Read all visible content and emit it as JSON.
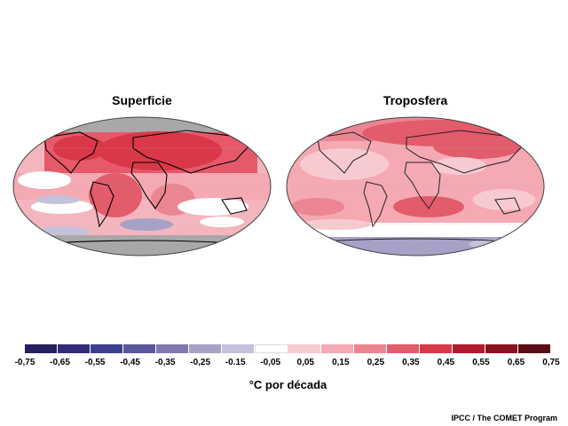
{
  "maps": {
    "surface": {
      "title": "Superficie"
    },
    "troposphere": {
      "title": "Troposfera"
    }
  },
  "legend": {
    "unit": "°C por década",
    "ticks": [
      "-0,75",
      "-0,65",
      "-0,55",
      "-0,45",
      "-0,35",
      "-0,25",
      "-0.15",
      "-0,05",
      "0,05",
      "0,15",
      "0,25",
      "0,35",
      "0,45",
      "0,55",
      "0,65",
      "0,75"
    ],
    "colors": [
      "#26215e",
      "#322c79",
      "#3d3f8e",
      "#5b579c",
      "#8079af",
      "#a6a2c7",
      "#c4c1db",
      "#ffffff",
      "#f7cad0",
      "#f4a9b3",
      "#ec8592",
      "#e35c6c",
      "#d93848",
      "#b01a2c",
      "#8a1020",
      "#5a0e14"
    ]
  },
  "credit": "IPCC / The COMET Program",
  "colors": {
    "ocean_gray": "#9a9a9a",
    "coast": "#000000",
    "no_data": "#a0a0a0"
  }
}
